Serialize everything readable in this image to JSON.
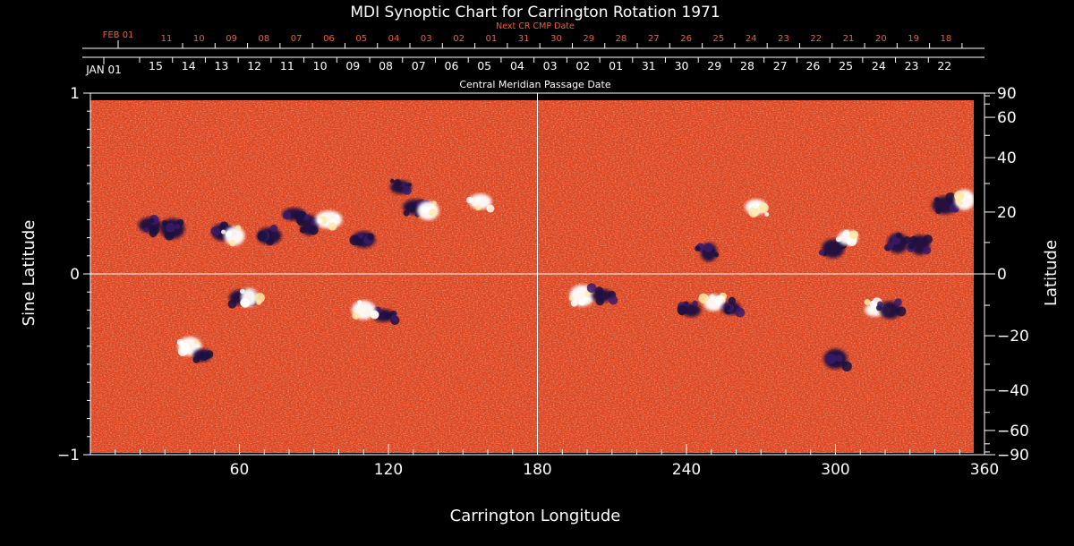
{
  "chart_data": {
    "type": "heatmap",
    "title": "MDI Synoptic Chart for Carrington Rotation 1971",
    "xlabel": "Carrington Longitude",
    "ylabel_left": "Sine Latitude",
    "ylabel_right": "Latitude",
    "xlim": [
      0,
      360
    ],
    "ylim": [
      -1,
      1
    ],
    "x_ticks": [
      60,
      120,
      180,
      240,
      300,
      360
    ],
    "y_ticks_left": [
      {
        "value": 1,
        "label": "1"
      },
      {
        "value": 0,
        "label": "0"
      },
      {
        "value": -1,
        "label": "−1"
      }
    ],
    "y_ticks_right": [
      {
        "lat": 90,
        "label": "90"
      },
      {
        "lat": 60,
        "label": "60"
      },
      {
        "lat": 40,
        "label": "40"
      },
      {
        "lat": 20,
        "label": "20"
      },
      {
        "lat": 0,
        "label": "0"
      },
      {
        "lat": -20,
        "label": "−20"
      },
      {
        "lat": -40,
        "label": "−40"
      },
      {
        "lat": -60,
        "label": "−60"
      },
      {
        "lat": -90,
        "label": "−90"
      }
    ],
    "top_axis_label": "Central Meridian Passage Date",
    "cmp_axis": {
      "first_label": "JAN 01",
      "labels": [
        "15",
        "14",
        "13",
        "12",
        "11",
        "10",
        "09",
        "08",
        "07",
        "06",
        "05",
        "04",
        "03",
        "02",
        "01",
        "31",
        "30",
        "29",
        "28",
        "27",
        "26",
        "25",
        "24",
        "23",
        "22"
      ]
    },
    "next_cr_axis": {
      "title": "Next CR CMP Date",
      "first_label": "FEB 01",
      "labels": [
        "11",
        "10",
        "09",
        "08",
        "07",
        "06",
        "05",
        "04",
        "03",
        "02",
        "01",
        "31",
        "30",
        "29",
        "28",
        "27",
        "26",
        "25",
        "24",
        "23",
        "22",
        "21",
        "20",
        "19",
        "18"
      ]
    },
    "grid_lines": {
      "longitude": 180,
      "sine_latitude": 0
    },
    "colors": {
      "background": "#000000",
      "field": "#e0441c",
      "positive_flux": "#ffffff",
      "negative_flux": "#1a1040",
      "next_cr_axis": "#ff5a2a",
      "text": "#ffffff"
    },
    "regions": [
      {
        "lon": 24,
        "slat": 0.27,
        "polarity": "negative"
      },
      {
        "lon": 33,
        "slat": 0.25,
        "polarity": "negative"
      },
      {
        "lon": 53,
        "slat": 0.23,
        "polarity": "negative"
      },
      {
        "lon": 58,
        "slat": 0.21,
        "polarity": "positive"
      },
      {
        "lon": 72,
        "slat": 0.21,
        "polarity": "negative"
      },
      {
        "lon": 82,
        "slat": 0.33,
        "polarity": "negative"
      },
      {
        "lon": 88,
        "slat": 0.27,
        "polarity": "negative"
      },
      {
        "lon": 96,
        "slat": 0.3,
        "polarity": "positive"
      },
      {
        "lon": 110,
        "slat": 0.19,
        "polarity": "negative"
      },
      {
        "lon": 125,
        "slat": 0.48,
        "polarity": "negative"
      },
      {
        "lon": 131,
        "slat": 0.37,
        "polarity": "negative"
      },
      {
        "lon": 136,
        "slat": 0.35,
        "polarity": "positive"
      },
      {
        "lon": 157,
        "slat": 0.4,
        "polarity": "positive"
      },
      {
        "lon": 61,
        "slat": -0.13,
        "polarity": "negative"
      },
      {
        "lon": 64,
        "slat": -0.13,
        "polarity": "positive"
      },
      {
        "lon": 40,
        "slat": -0.4,
        "polarity": "positive"
      },
      {
        "lon": 45,
        "slat": -0.45,
        "polarity": "negative"
      },
      {
        "lon": 118,
        "slat": -0.23,
        "polarity": "negative"
      },
      {
        "lon": 110,
        "slat": -0.2,
        "polarity": "positive"
      },
      {
        "lon": 198,
        "slat": -0.12,
        "polarity": "positive"
      },
      {
        "lon": 206,
        "slat": -0.12,
        "polarity": "negative"
      },
      {
        "lon": 242,
        "slat": -0.2,
        "polarity": "negative"
      },
      {
        "lon": 249,
        "slat": 0.12,
        "polarity": "negative"
      },
      {
        "lon": 251,
        "slat": -0.16,
        "polarity": "positive"
      },
      {
        "lon": 258,
        "slat": -0.19,
        "polarity": "negative"
      },
      {
        "lon": 268,
        "slat": 0.37,
        "polarity": "positive"
      },
      {
        "lon": 299,
        "slat": 0.14,
        "polarity": "negative"
      },
      {
        "lon": 305,
        "slat": 0.2,
        "polarity": "positive"
      },
      {
        "lon": 316,
        "slat": -0.2,
        "polarity": "positive"
      },
      {
        "lon": 322,
        "slat": -0.2,
        "polarity": "negative"
      },
      {
        "lon": 325,
        "slat": 0.17,
        "polarity": "negative"
      },
      {
        "lon": 334,
        "slat": 0.16,
        "polarity": "negative"
      },
      {
        "lon": 344,
        "slat": 0.38,
        "polarity": "negative"
      },
      {
        "lon": 352,
        "slat": 0.41,
        "polarity": "positive"
      },
      {
        "lon": 300,
        "slat": -0.47,
        "polarity": "negative"
      }
    ]
  }
}
